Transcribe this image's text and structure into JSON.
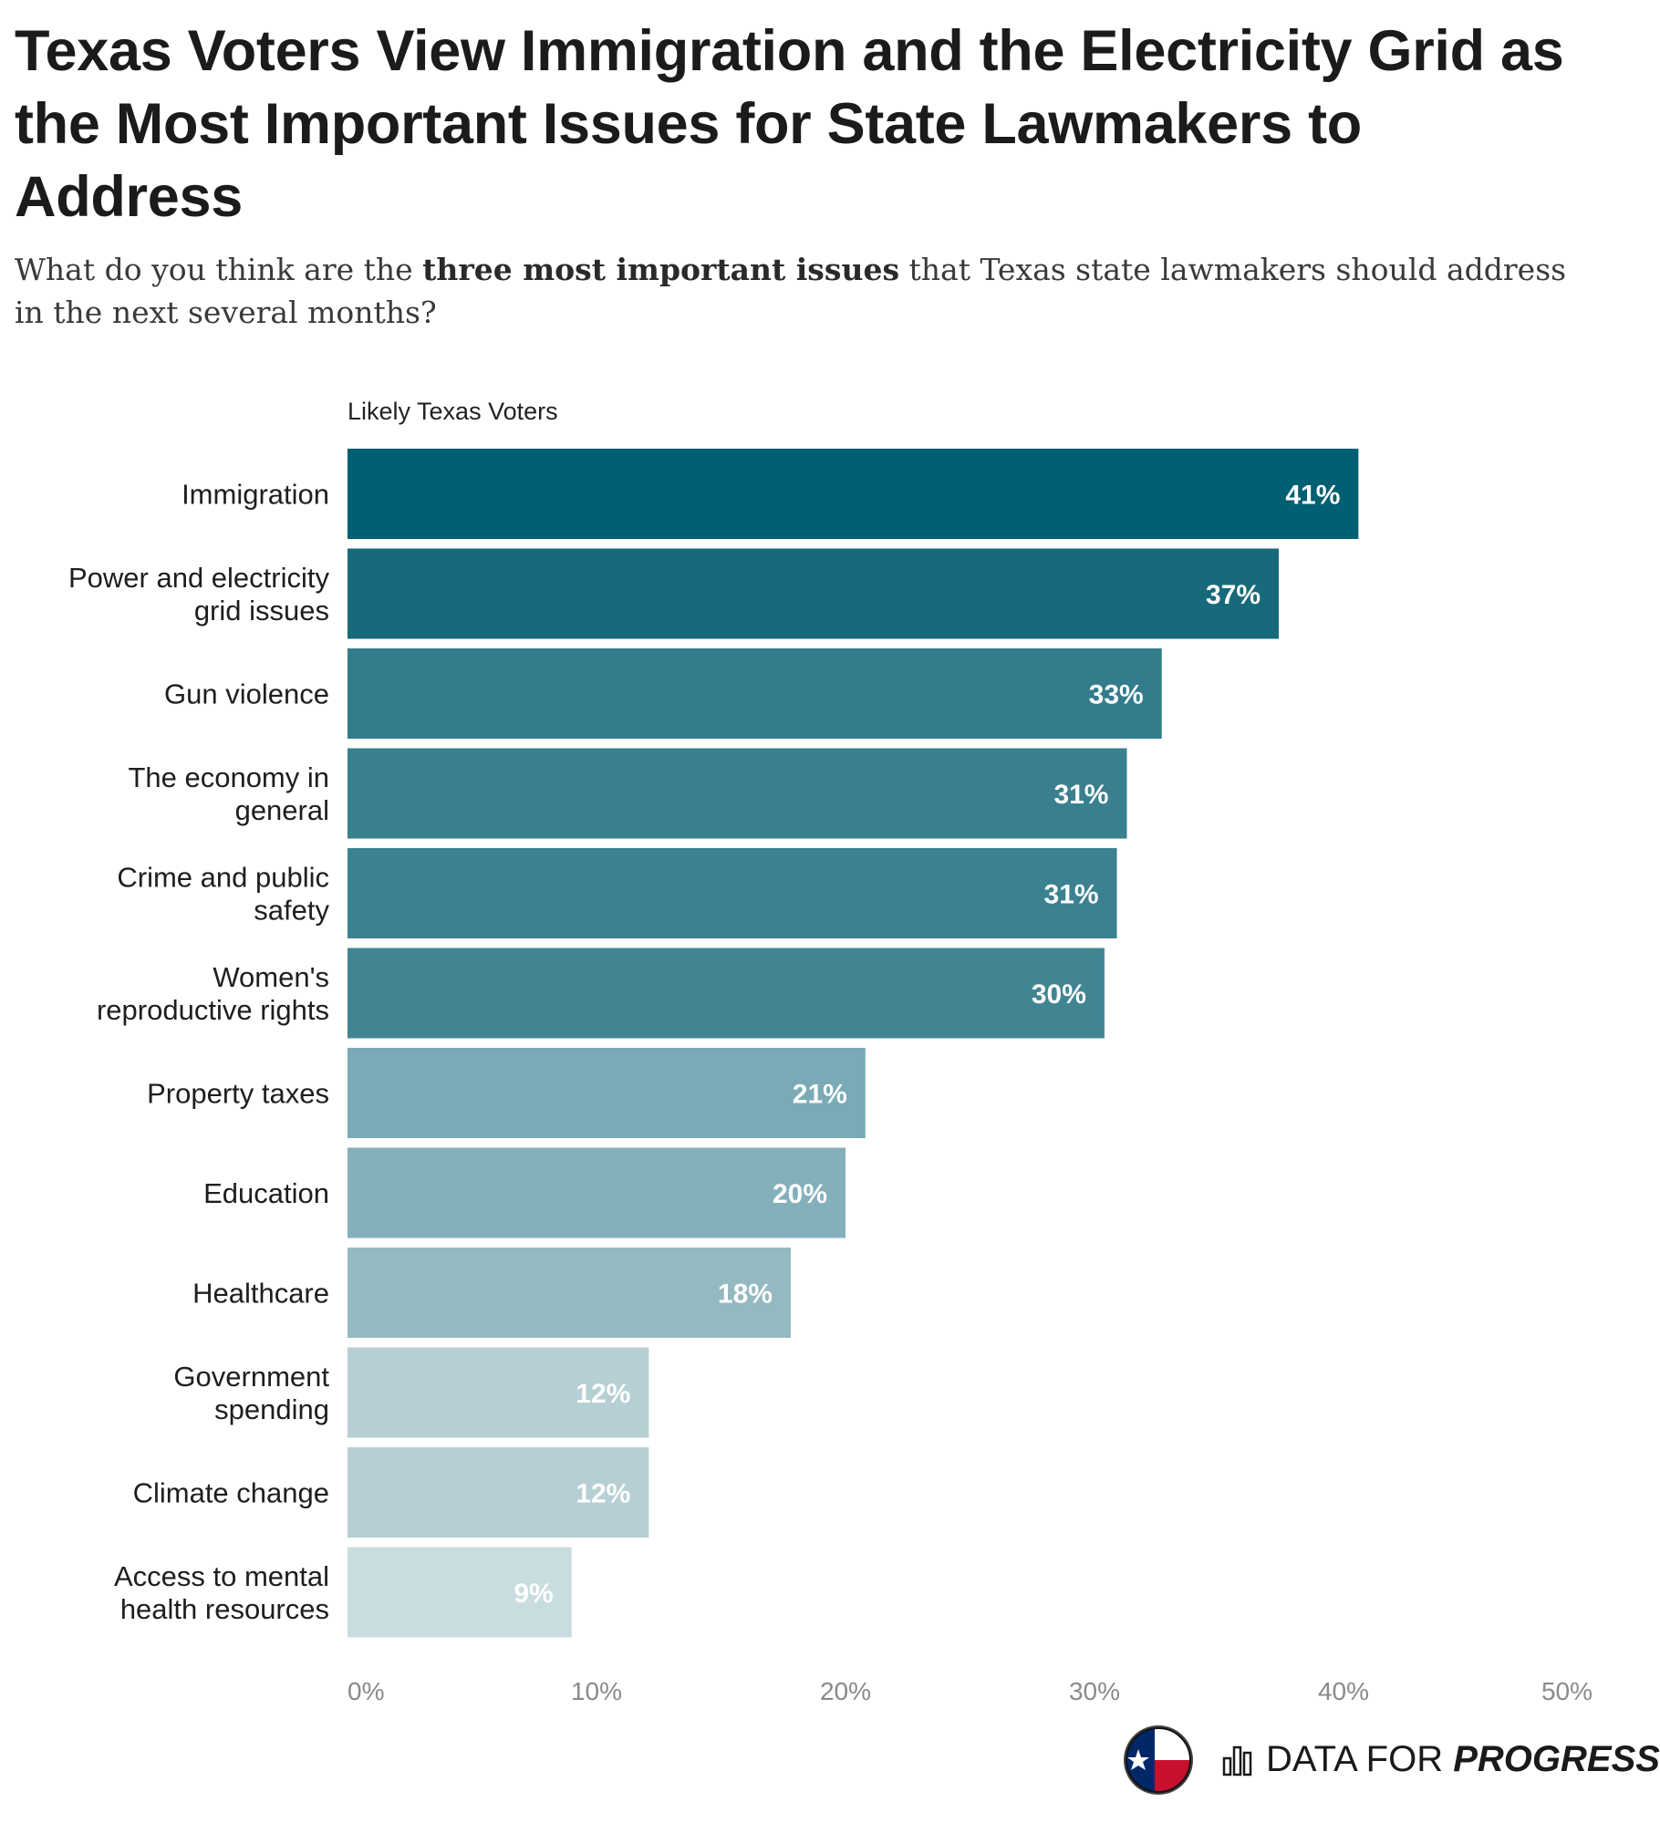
{
  "title": "Texas Voters View Immigration and the Electricity Grid as the Most Important Issues for State Lawmakers to Address",
  "subtitle": {
    "before": "What do you think are the ",
    "bold": "three most important issues",
    "after": " that Texas state lawmakers should address in the next several months?"
  },
  "brand": {
    "text_regular": "DATA FOR ",
    "text_bold": "PROGRESS",
    "logo_icon": "texas-flag-circle-icon",
    "bars_icon": "bar-chart-icon"
  },
  "chart_data": {
    "type": "bar",
    "orientation": "horizontal",
    "series_label": "Likely Texas Voters",
    "categories": [
      [
        "Immigration"
      ],
      [
        "Power and electricity",
        "grid issues"
      ],
      [
        "Gun violence"
      ],
      [
        "The economy in",
        "general"
      ],
      [
        "Crime and public",
        "safety"
      ],
      [
        "Women's",
        "reproductive rights"
      ],
      [
        "Property taxes"
      ],
      [
        "Education"
      ],
      [
        "Healthcare"
      ],
      [
        "Government",
        "spending"
      ],
      [
        "Climate change"
      ],
      [
        "Access to mental",
        "health resources"
      ]
    ],
    "values": [
      40.6,
      37.4,
      32.7,
      31.3,
      30.9,
      30.4,
      20.8,
      20.0,
      17.8,
      12.1,
      12.1,
      9.0
    ],
    "labels": [
      "41%",
      "37%",
      "33%",
      "31%",
      "31%",
      "30%",
      "21%",
      "20%",
      "18%",
      "12%",
      "12%",
      "9%"
    ],
    "colors": [
      "#015f72",
      "#176a7b",
      "#327c8b",
      "#397f8e",
      "#3b818f",
      "#418593",
      "#7aaab5",
      "#84b0bb",
      "#95b9c1",
      "#b6cfd4",
      "#b6cfd4",
      "#c9dde0"
    ],
    "x_ticks": [
      "0%",
      "10%",
      "20%",
      "30%",
      "40%",
      "50%"
    ],
    "xlim": [
      0,
      50
    ]
  }
}
